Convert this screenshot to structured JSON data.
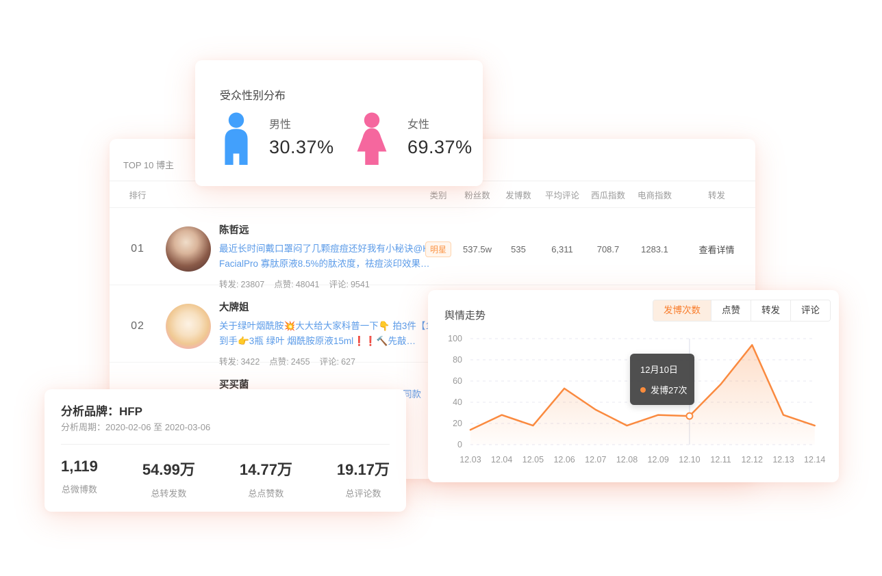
{
  "accent_color": "#FA8A3F",
  "link_color": "#5B9BE8",
  "gender_card": {
    "title": "受众性别分布",
    "male": {
      "label": "男性",
      "value": "30.37%",
      "color": "#42A0FC"
    },
    "female": {
      "label": "女性",
      "value": "69.37%",
      "color": "#F5679E"
    }
  },
  "bloggers_card": {
    "title": "TOP 10 博主",
    "headers": {
      "rank": "排行",
      "category": "类别",
      "fans": "粉丝数",
      "posts": "发博数",
      "avg_comments": "平均评论",
      "xigua_index": "西瓜指数",
      "ecommerce_index": "电商指数",
      "repost": "转发"
    },
    "action_label": "查看详情",
    "stat_labels": {
      "repost": "转发:",
      "like": "点赞:",
      "comment": "评论:"
    },
    "rows": [
      {
        "rank": "01",
        "name": "陈哲远",
        "post_lines": [
          "最近长时间戴口罩闷了几颗痘痘还好我有小秘诀@Home",
          "FacialPro 寡肽原液8.5%的肽浓度，祛痘淡印效果…"
        ],
        "repost": "23807",
        "like": "48041",
        "comment": "9541",
        "category": "明星",
        "fans": "537.5w",
        "posts": "535",
        "avg_comments": "6,311",
        "xigua_index": "708.7",
        "ecommerce_index": "1283.1"
      },
      {
        "rank": "02",
        "name": "大牌姐",
        "post_lines": [
          "关于绿叶烟酰胺💥大大给大家科普一下👇 拍3件【19.9】",
          "到手👉3瓶 绿叶 烟酰胺原液15ml❗❗🔨先敲…"
        ],
        "repost": "3422",
        "like": "2455",
        "comment": "627"
      },
      {
        "name": "买买菌",
        "post_tail": "同款"
      }
    ]
  },
  "brand_card": {
    "title": "分析品牌：HFP",
    "period": "分析周期：2020-02-06 至 2020-03-06",
    "stats": [
      {
        "value": "1,119",
        "label": "总微博数"
      },
      {
        "value": "54.99万",
        "label": "总转发数"
      },
      {
        "value": "14.77万",
        "label": "总点赞数"
      },
      {
        "value": "19.17万",
        "label": "总评论数"
      }
    ]
  },
  "trend_card": {
    "title": "舆情走势",
    "tabs": [
      {
        "label": "发博次数",
        "active": true
      },
      {
        "label": "点赞",
        "active": false
      },
      {
        "label": "转发",
        "active": false
      },
      {
        "label": "评论",
        "active": false
      }
    ]
  },
  "chart_data": {
    "type": "line",
    "title": "舆情走势",
    "x": [
      "12.03",
      "12.04",
      "12.05",
      "12.06",
      "12.07",
      "12.08",
      "12.09",
      "12.10",
      "12.11",
      "12.12",
      "12.13",
      "12.14"
    ],
    "series": [
      {
        "name": "发博次数",
        "values": [
          14,
          28,
          18,
          53,
          33,
          18,
          28,
          27,
          57,
          94,
          28,
          18
        ]
      }
    ],
    "ylim": [
      0,
      100
    ],
    "yticks": [
      0,
      20,
      40,
      60,
      80,
      100
    ],
    "grid": "dashed-horizontal",
    "legend": "none",
    "line_color": "#FA8A3F",
    "area_fill": "rgba(250,138,63,0.25)",
    "highlight_index": 7,
    "tooltip": {
      "date": "12月10日",
      "label": "发博27次"
    }
  }
}
